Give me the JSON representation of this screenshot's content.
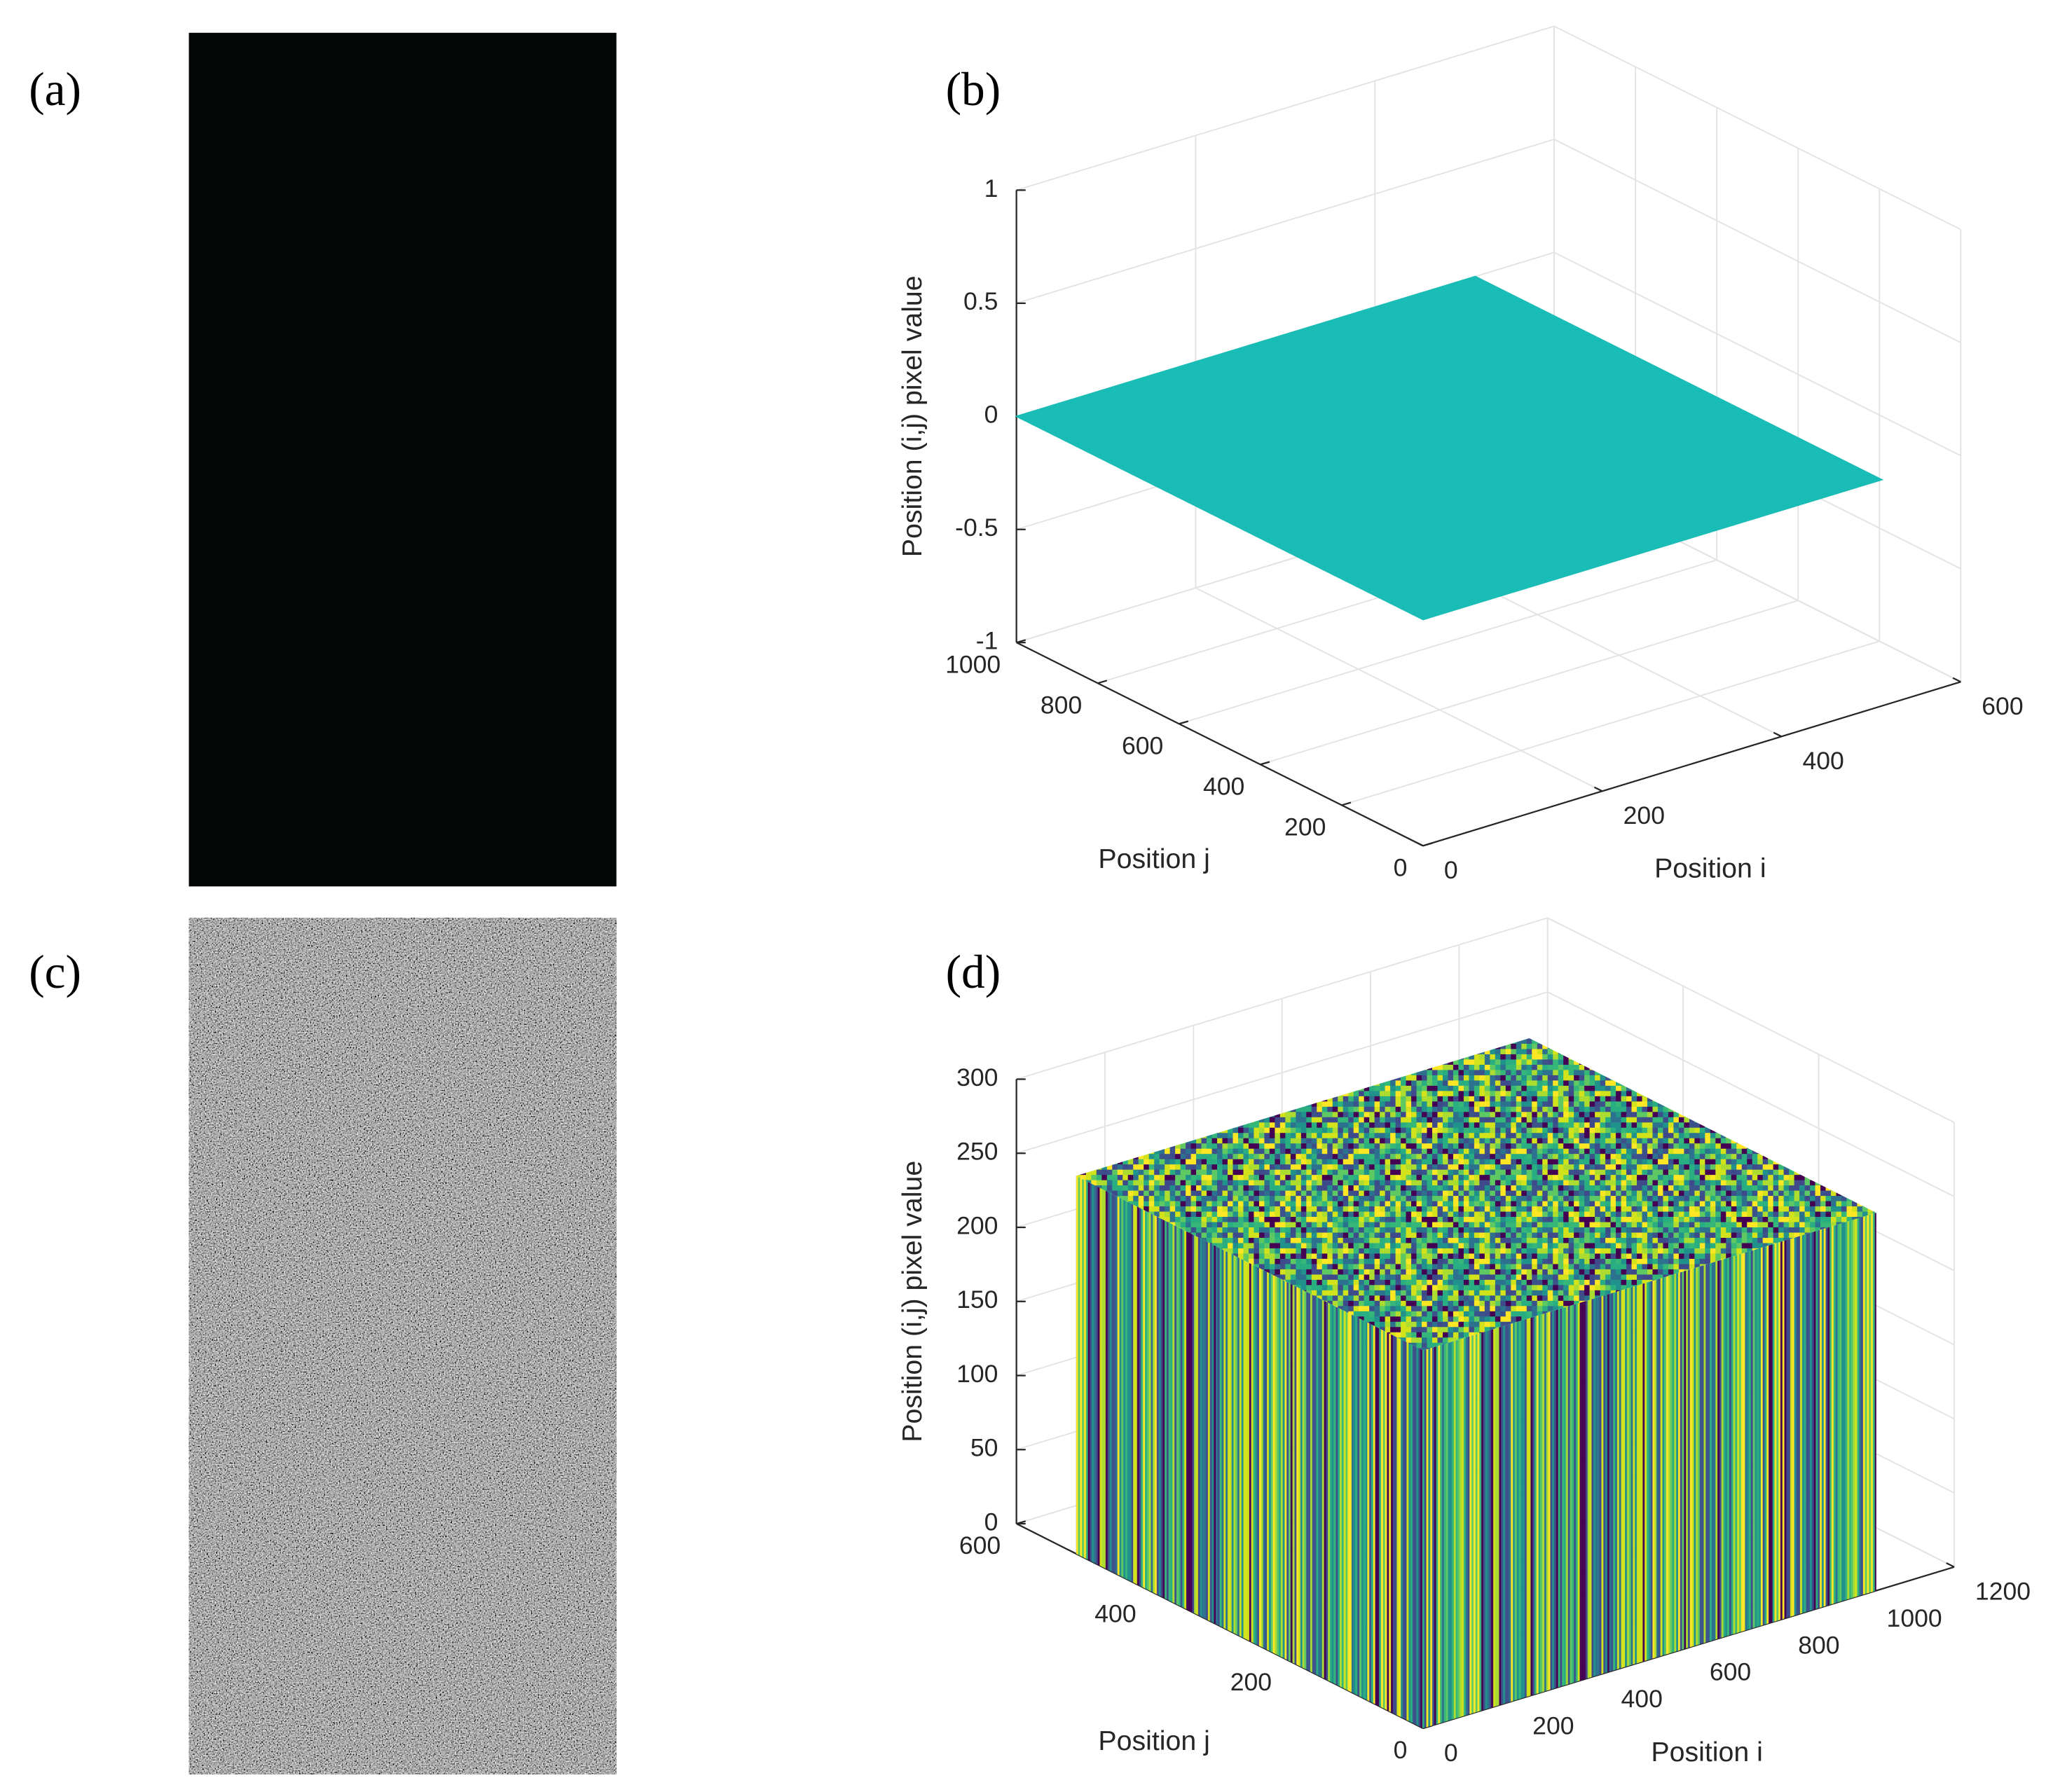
{
  "panel_labels": [
    "(a)",
    "(b)",
    "(c)",
    "(d)"
  ],
  "chart_data": [
    {
      "type": "surface",
      "xlabel": "Position i",
      "ylabel": "Position j",
      "zlabel": "Position (i,j) pixel value",
      "xlim": [
        0,
        600
      ],
      "xticks": [
        0,
        200,
        400,
        600
      ],
      "ylim": [
        0,
        1000
      ],
      "yticks": [
        0,
        200,
        400,
        600,
        800,
        1000
      ],
      "zlim": [
        -1,
        1
      ],
      "zticks": [
        -1,
        -0.5,
        0,
        0.5,
        1
      ],
      "grid": true,
      "surface": {
        "x": [
          0,
          512
        ],
        "y": [
          0,
          1000
        ],
        "z": 0
      },
      "color": "#1abcb6"
    },
    {
      "type": "noise-block",
      "xlabel": "Position i",
      "ylabel": "Position j",
      "zlabel": "Position (i,j) pixel value",
      "xlim": [
        0,
        1200
      ],
      "xticks": [
        0,
        200,
        400,
        600,
        800,
        1000,
        1200
      ],
      "ylim": [
        0,
        600
      ],
      "yticks": [
        0,
        200,
        400,
        600
      ],
      "zlim": [
        0,
        300
      ],
      "zticks": [
        0,
        50,
        100,
        150,
        200,
        250,
        300
      ],
      "grid": true,
      "block": {
        "x": [
          0,
          1024
        ],
        "y": [
          0,
          512
        ],
        "z": [
          0,
          255
        ]
      }
    }
  ]
}
